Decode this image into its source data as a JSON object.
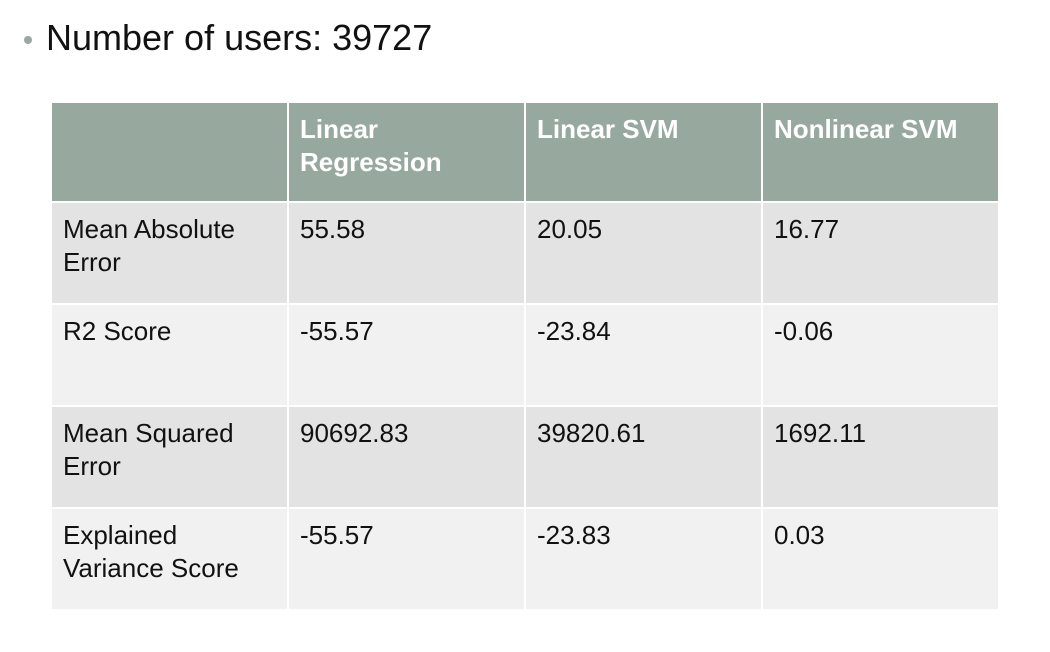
{
  "bullet": {
    "text": "Number of users: 39727"
  },
  "table": {
    "headers": [
      "",
      "Linear Regression",
      "Linear SVM",
      "Nonlinear SVM"
    ],
    "rows": [
      {
        "label": "Mean Absolute Error",
        "cells": [
          "55.58",
          "20.05",
          "16.77"
        ]
      },
      {
        "label": "R2 Score",
        "cells": [
          "-55.57",
          "-23.84",
          "-0.06"
        ]
      },
      {
        "label": "Mean Squared Error",
        "cells": [
          "90692.83",
          "39820.61",
          "1692.11"
        ]
      },
      {
        "label": "Explained Variance Score",
        "cells": [
          "-55.57",
          "-23.83",
          "0.03"
        ]
      }
    ]
  },
  "colors": {
    "header_bg": "#97a99f",
    "row_dark_bg": "#e3e3e3",
    "row_light_bg": "#f1f1f1",
    "bullet": "#98a8a0"
  }
}
